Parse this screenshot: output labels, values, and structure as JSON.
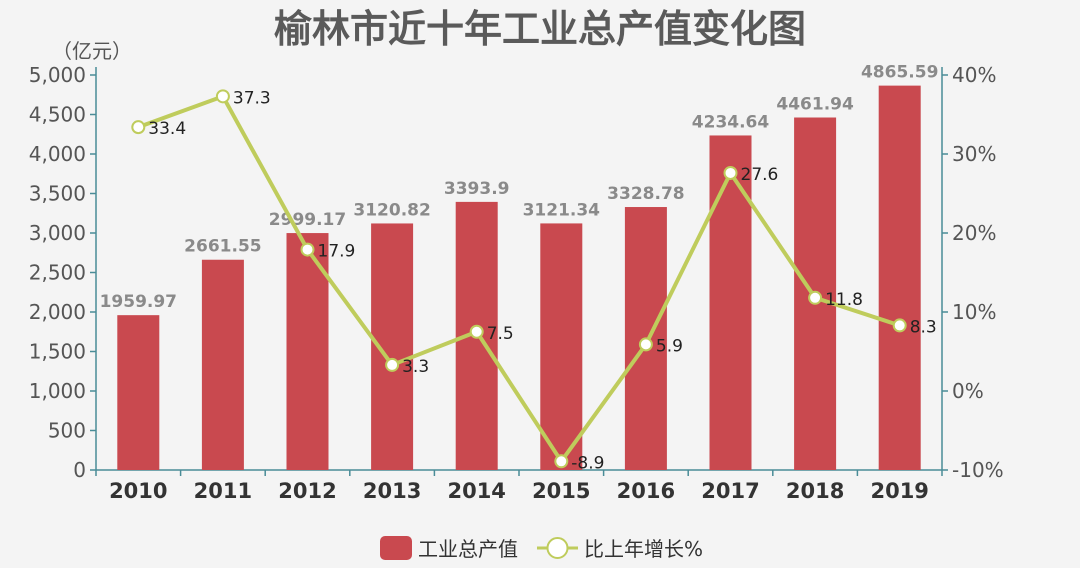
{
  "chart_data": {
    "type": "bar",
    "title": "榆林市近十年工业总产值变化图",
    "y_unit": "（亿元）",
    "categories": [
      "2010",
      "2011",
      "2012",
      "2013",
      "2014",
      "2015",
      "2016",
      "2017",
      "2018",
      "2019"
    ],
    "series": [
      {
        "name": "工业总产值",
        "type": "bar",
        "axis": "left",
        "color": "#c9494f",
        "values": [
          1959.97,
          2661.55,
          2999.17,
          3120.82,
          3393.9,
          3121.34,
          3328.78,
          4234.64,
          4461.94,
          4865.59
        ],
        "labels": [
          "1959.97",
          "2661.55",
          "2999.17",
          "3120.82",
          "3393.9",
          "3121.34",
          "3328.78",
          "4234.64",
          "4461.94",
          "4865.59"
        ]
      },
      {
        "name": "比上年增长%",
        "type": "line",
        "axis": "right",
        "color": "#bfcc5c",
        "values": [
          33.4,
          37.3,
          17.9,
          3.3,
          7.5,
          -8.9,
          5.9,
          27.6,
          11.8,
          8.3
        ],
        "labels": [
          "33.4",
          "37.3",
          "17.9",
          "3.3",
          "7.5",
          "-8.9",
          "5.9",
          "27.6",
          "11.8",
          "8.3"
        ]
      }
    ],
    "y_left": {
      "min": 0,
      "max": 5000,
      "ticks": [
        "0",
        "500",
        "1,000",
        "1,500",
        "2,000",
        "2,500",
        "3,000",
        "3,500",
        "4,000",
        "4,500",
        "5,000"
      ]
    },
    "y_right": {
      "min": -10,
      "max": 40,
      "ticks": [
        "-10%",
        "0%",
        "10%",
        "20%",
        "30%",
        "40%"
      ]
    },
    "grid": false,
    "legend_position": "bottom-center"
  }
}
